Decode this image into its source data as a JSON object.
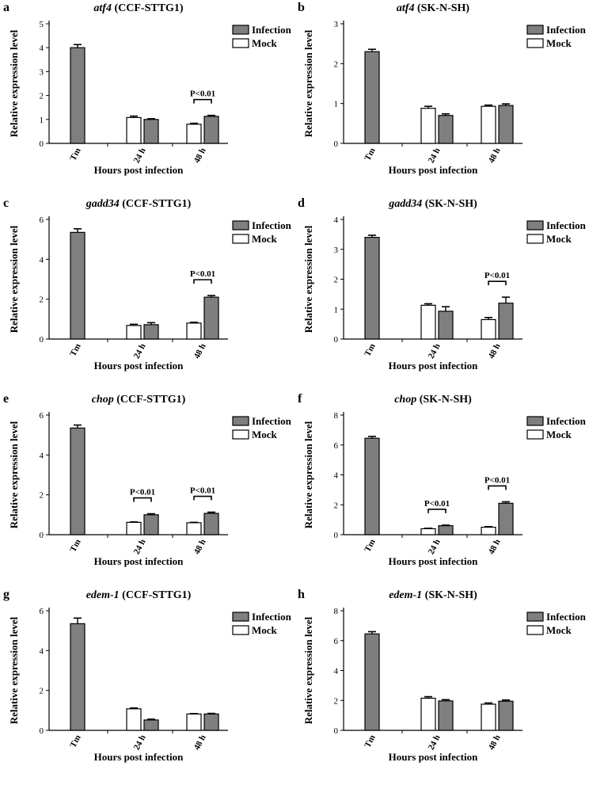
{
  "colors": {
    "infection": "#7f7f7f",
    "mock": "#ffffff",
    "stroke": "#000000"
  },
  "chart_data": [
    {
      "type": "bar",
      "letter": "a",
      "gene": "atf4",
      "cell": "(CCF-STTG1)",
      "categories": [
        "Tm",
        "24 h",
        "48 h"
      ],
      "series": [
        {
          "name": "Infection",
          "values": [
            4.0,
            1.0,
            1.13
          ],
          "errors": [
            0.13,
            0.03,
            0.04
          ]
        },
        {
          "name": "Mock",
          "values": [
            null,
            1.08,
            0.8
          ],
          "errors": [
            null,
            0.06,
            0.04
          ]
        }
      ],
      "ylim": [
        0,
        5
      ],
      "yticks": [
        0,
        1,
        2,
        3,
        4,
        5
      ],
      "xlabel": "Hours post infection",
      "ylabel": "Relative expression level",
      "legend_position": "top-right",
      "legend": [
        "Infection",
        "Mock"
      ],
      "annotations": [
        {
          "category": 2,
          "text": "P<0.01"
        }
      ]
    },
    {
      "type": "bar",
      "letter": "b",
      "gene": "atf4",
      "cell": "(SK-N-SH)",
      "categories": [
        "Tm",
        "24 h",
        "48 h"
      ],
      "series": [
        {
          "name": "Infection",
          "values": [
            2.3,
            0.7,
            0.95
          ],
          "errors": [
            0.06,
            0.04,
            0.04
          ]
        },
        {
          "name": "Mock",
          "values": [
            null,
            0.88,
            0.93
          ],
          "errors": [
            null,
            0.05,
            0.03
          ]
        }
      ],
      "ylim": [
        0,
        3
      ],
      "yticks": [
        0,
        1,
        2,
        3
      ],
      "xlabel": "Hours post infection",
      "ylabel": "Relative expression level",
      "legend_position": "top-right",
      "legend": [
        "Infection",
        "Mock"
      ],
      "annotations": []
    },
    {
      "type": "bar",
      "letter": "c",
      "gene": "gadd34",
      "cell": "(CCF-STTG1)",
      "categories": [
        "Tm",
        "24 h",
        "48 h"
      ],
      "series": [
        {
          "name": "Infection",
          "values": [
            5.35,
            0.72,
            2.1
          ],
          "errors": [
            0.18,
            0.1,
            0.08
          ]
        },
        {
          "name": "Mock",
          "values": [
            null,
            0.68,
            0.8
          ],
          "errors": [
            null,
            0.06,
            0.04
          ]
        }
      ],
      "ylim": [
        0,
        6
      ],
      "yticks": [
        0,
        2,
        4,
        6
      ],
      "xlabel": "Hours post infection",
      "ylabel": "Relative expression level",
      "legend_position": "top-right",
      "legend": [
        "Infection",
        "Mock"
      ],
      "annotations": [
        {
          "category": 2,
          "text": "P<0.01"
        }
      ]
    },
    {
      "type": "bar",
      "letter": "d",
      "gene": "gadd34",
      "cell": "(SK-N-SH)",
      "categories": [
        "Tm",
        "24 h",
        "48 h"
      ],
      "series": [
        {
          "name": "Infection",
          "values": [
            3.4,
            0.93,
            1.2
          ],
          "errors": [
            0.07,
            0.15,
            0.2
          ]
        },
        {
          "name": "Mock",
          "values": [
            null,
            1.13,
            0.65
          ],
          "errors": [
            null,
            0.05,
            0.07
          ]
        }
      ],
      "ylim": [
        0,
        4
      ],
      "yticks": [
        0,
        1,
        2,
        3,
        4
      ],
      "xlabel": "Hours post infection",
      "ylabel": "Relative expression level",
      "legend_position": "top-right",
      "legend": [
        "Infection",
        "Mock"
      ],
      "annotations": [
        {
          "category": 2,
          "text": "P<0.01"
        }
      ]
    },
    {
      "type": "bar",
      "letter": "e",
      "gene": "chop",
      "cell": "(CCF-STTG1)",
      "categories": [
        "Tm",
        "24 h",
        "48 h"
      ],
      "series": [
        {
          "name": "Infection",
          "values": [
            5.35,
            1.0,
            1.07
          ],
          "errors": [
            0.15,
            0.05,
            0.06
          ]
        },
        {
          "name": "Mock",
          "values": [
            null,
            0.62,
            0.6
          ],
          "errors": [
            null,
            0.02,
            0.02
          ]
        }
      ],
      "ylim": [
        0,
        6
      ],
      "yticks": [
        0,
        2,
        4,
        6
      ],
      "xlabel": "Hours post infection",
      "ylabel": "Relative expression level",
      "legend_position": "top-right",
      "legend": [
        "Infection",
        "Mock"
      ],
      "annotations": [
        {
          "category": 1,
          "text": "P<0.01"
        },
        {
          "category": 2,
          "text": "P<0.01"
        }
      ]
    },
    {
      "type": "bar",
      "letter": "f",
      "gene": "chop",
      "cell": "(SK-N-SH)",
      "categories": [
        "Tm",
        "24 h",
        "48 h"
      ],
      "series": [
        {
          "name": "Infection",
          "values": [
            6.45,
            0.6,
            2.1
          ],
          "errors": [
            0.12,
            0.04,
            0.1
          ]
        },
        {
          "name": "Mock",
          "values": [
            null,
            0.4,
            0.5
          ],
          "errors": [
            null,
            0.03,
            0.04
          ]
        }
      ],
      "ylim": [
        0,
        8
      ],
      "yticks": [
        0,
        2,
        4,
        6,
        8
      ],
      "xlabel": "Hours post infection",
      "ylabel": "Relative expression level",
      "legend_position": "top-right",
      "legend": [
        "Infection",
        "Mock"
      ],
      "annotations": [
        {
          "category": 1,
          "text": "P<0.01"
        },
        {
          "category": 2,
          "text": "P<0.01"
        }
      ]
    },
    {
      "type": "bar",
      "letter": "g",
      "gene": "edem-1",
      "cell": "(CCF-STTG1)",
      "categories": [
        "Tm",
        "24 h",
        "48 h"
      ],
      "series": [
        {
          "name": "Infection",
          "values": [
            5.35,
            0.52,
            0.82
          ],
          "errors": [
            0.28,
            0.04,
            0.03
          ]
        },
        {
          "name": "Mock",
          "values": [
            null,
            1.08,
            0.82
          ],
          "errors": [
            null,
            0.04,
            0.02
          ]
        }
      ],
      "ylim": [
        0,
        6
      ],
      "yticks": [
        0,
        2,
        4,
        6
      ],
      "xlabel": "Hours post infection",
      "ylabel": "Relative expression level",
      "legend_position": "top-right",
      "legend": [
        "Infection",
        "Mock"
      ],
      "annotations": []
    },
    {
      "type": "bar",
      "letter": "h",
      "gene": "edem-1",
      "cell": "(SK-N-SH)",
      "categories": [
        "Tm",
        "24 h",
        "48 h"
      ],
      "series": [
        {
          "name": "Infection",
          "values": [
            6.45,
            1.97,
            1.95
          ],
          "errors": [
            0.15,
            0.08,
            0.08
          ]
        },
        {
          "name": "Mock",
          "values": [
            null,
            2.15,
            1.75
          ],
          "errors": [
            null,
            0.1,
            0.08
          ]
        }
      ],
      "ylim": [
        0,
        8
      ],
      "yticks": [
        0,
        2,
        4,
        6,
        8
      ],
      "xlabel": "Hours post infection",
      "ylabel": "Relative expression level",
      "legend_position": "top-right",
      "legend": [
        "Infection",
        "Mock"
      ],
      "annotations": []
    }
  ]
}
